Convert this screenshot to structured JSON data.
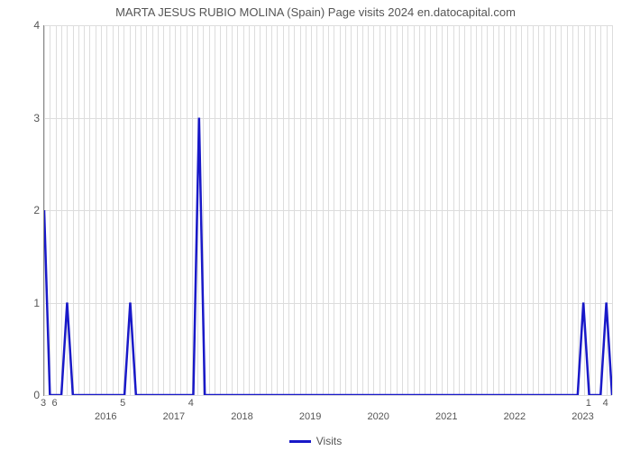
{
  "chart": {
    "type": "line",
    "title": "MARTA JESUS RUBIO MOLINA (Spain) Page visits 2024 en.datocapital.com",
    "title_fontsize": 13,
    "title_color": "#555555",
    "background_color": "#ffffff",
    "grid_color": "#dddddd",
    "axis_color": "#888888",
    "line_color": "#1919c8",
    "line_width": 2.5,
    "ylim": [
      0,
      4
    ],
    "yticks": [
      0,
      1,
      2,
      3,
      4
    ],
    "ytick_fontsize": 12,
    "ytick_color": "#555555",
    "x_year_labels": [
      "2016",
      "2017",
      "2018",
      "2019",
      "2020",
      "2021",
      "2022",
      "2023"
    ],
    "x_year_index": [
      11,
      23,
      35,
      47,
      59,
      71,
      83,
      95
    ],
    "x_value_labels": [
      {
        "idx": 0,
        "label": "3"
      },
      {
        "idx": 2,
        "label": "6"
      },
      {
        "idx": 14,
        "label": "5"
      },
      {
        "idx": 26,
        "label": "4"
      },
      {
        "idx": 96,
        "label": "1"
      },
      {
        "idx": 99,
        "label": "4"
      }
    ],
    "minor_grid_count": 100,
    "legend": {
      "label": "Visits",
      "color": "#1919c8"
    },
    "data": {
      "n": 100,
      "spikes": [
        {
          "i": 0,
          "v": 2
        },
        {
          "i": 4,
          "v": 1
        },
        {
          "i": 15,
          "v": 1
        },
        {
          "i": 27,
          "v": 3
        },
        {
          "i": 94,
          "v": 1
        },
        {
          "i": 98,
          "v": 1
        }
      ]
    }
  }
}
